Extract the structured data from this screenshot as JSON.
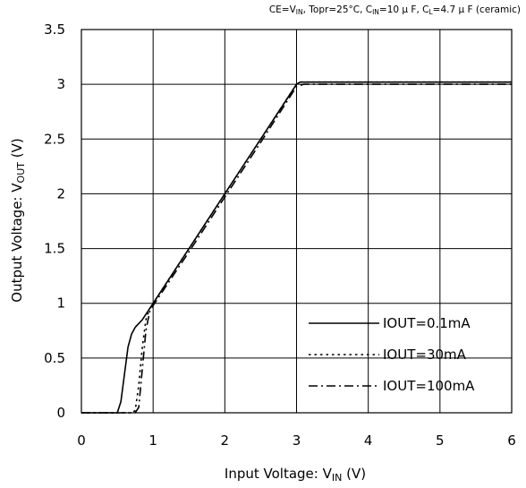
{
  "chart_data": {
    "type": "line",
    "conditions": {
      "ce": "CE=V",
      "ce_sub": "IN",
      "topr": ", Topr=25°C, C",
      "cin_sub": "IN",
      "cin": "=10 μ F, C",
      "cl_sub": "L",
      "cl": "=4.7 μ F (ceramic)"
    },
    "xlabel": {
      "main": "Input Voltage: V",
      "sub": "IN",
      "unit": " (V)"
    },
    "ylabel": {
      "main": "Output Voltage: V",
      "sub": "OUT",
      "unit": " (V)"
    },
    "xlim": [
      0,
      6
    ],
    "ylim": [
      0,
      3.5
    ],
    "xticks": [
      "0",
      "1",
      "2",
      "3",
      "4",
      "5",
      "6"
    ],
    "yticks": [
      "0",
      "0.5",
      "1",
      "1.5",
      "2",
      "2.5",
      "3",
      "3.5"
    ],
    "grid": true,
    "legend_position": "bottom-right",
    "series": [
      {
        "name": "IOUT=0.1mA",
        "style": "solid",
        "x": [
          0,
          0.5,
          0.55,
          0.6,
          0.65,
          0.7,
          0.75,
          0.85,
          0.95,
          1.0,
          1.5,
          2.0,
          2.5,
          3.0,
          3.05,
          6.0
        ],
        "y": [
          0,
          0,
          0.1,
          0.35,
          0.6,
          0.72,
          0.78,
          0.85,
          0.95,
          1.0,
          1.5,
          2.0,
          2.5,
          3.0,
          3.02,
          3.02
        ]
      },
      {
        "name": "IOUT=30mA",
        "style": "dotted",
        "x": [
          0,
          0.7,
          0.75,
          0.8,
          0.85,
          0.9,
          0.95,
          1.0,
          1.5,
          2.0,
          2.5,
          3.0,
          3.05,
          6.0
        ],
        "y": [
          0,
          0,
          0.02,
          0.25,
          0.6,
          0.85,
          0.95,
          1.0,
          1.5,
          2.0,
          2.5,
          3.0,
          3.02,
          3.02
        ]
      },
      {
        "name": "IOUT=100mA",
        "style": "dashdot",
        "x": [
          0,
          0.75,
          0.8,
          0.85,
          0.9,
          0.95,
          1.0,
          1.5,
          2.0,
          2.5,
          3.0,
          3.1,
          6.0
        ],
        "y": [
          0,
          0,
          0.05,
          0.4,
          0.75,
          0.92,
          0.98,
          1.47,
          1.97,
          2.47,
          2.98,
          3.0,
          3.0
        ]
      }
    ]
  }
}
